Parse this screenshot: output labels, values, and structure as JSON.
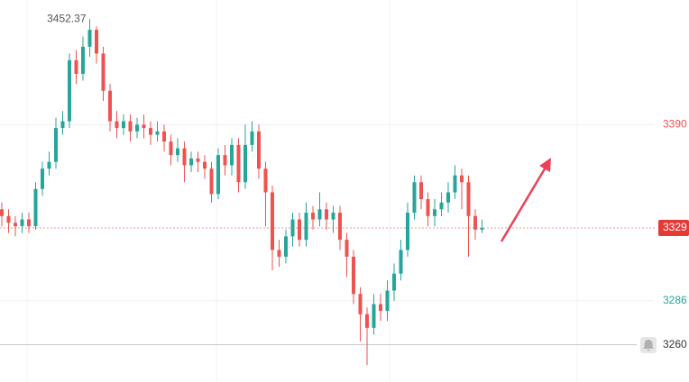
{
  "chart_data": {
    "type": "candlestick",
    "up_color": "#26a69a",
    "down_color": "#ef5350",
    "ylim": [
      3238,
      3463.6
    ],
    "yticks": [
      3286,
      3390
    ],
    "ytick_colors": [
      "#26a69a",
      "#ef5350"
    ],
    "grid": true,
    "high_label": 3452.37,
    "last_price": 3329,
    "alert_level": 3260,
    "open": [
      3340,
      3336,
      3332,
      3330,
      3334,
      3330,
      3352,
      3364,
      3368,
      3388,
      3392,
      3428,
      3420,
      3436,
      3446,
      3432,
      3410,
      3392,
      3388,
      3392,
      3386,
      3390,
      3388,
      3384,
      3386,
      3380,
      3372,
      3376,
      3366,
      3370,
      3368,
      3364,
      3349,
      3372,
      3366,
      3378,
      3356,
      3378,
      3386,
      3364,
      3350,
      3316,
      3312,
      3324,
      3334,
      3322,
      3338,
      3334,
      3340,
      3334,
      3338,
      3322,
      3312,
      3290,
      3278,
      3270,
      3284,
      3280,
      3292,
      3302,
      3316,
      3338,
      3356,
      3346,
      3336,
      3340,
      3344,
      3350,
      3360,
      3356,
      3336,
      3328
    ],
    "high": [
      3344,
      3340,
      3336,
      3338,
      3338,
      3356,
      3368,
      3374,
      3394,
      3398,
      3432,
      3434,
      3442,
      3452.37,
      3448,
      3436,
      3414,
      3398,
      3396,
      3396,
      3394,
      3396,
      3392,
      3392,
      3390,
      3384,
      3382,
      3380,
      3374,
      3374,
      3372,
      3368,
      3376,
      3378,
      3382,
      3382,
      3390,
      3392,
      3390,
      3368,
      3354,
      3322,
      3328,
      3338,
      3338,
      3344,
      3342,
      3350,
      3344,
      3342,
      3342,
      3326,
      3316,
      3294,
      3282,
      3290,
      3290,
      3298,
      3308,
      3322,
      3344,
      3360,
      3360,
      3350,
      3346,
      3350,
      3356,
      3366,
      3364,
      3360,
      3340,
      3334
    ],
    "low": [
      3330,
      3326,
      3324,
      3326,
      3326,
      3328,
      3348,
      3360,
      3364,
      3384,
      3388,
      3414,
      3416,
      3430,
      3426,
      3404,
      3386,
      3382,
      3384,
      3380,
      3382,
      3382,
      3378,
      3380,
      3374,
      3366,
      3368,
      3356,
      3362,
      3362,
      3358,
      3344,
      3346,
      3360,
      3360,
      3350,
      3352,
      3374,
      3358,
      3330,
      3304,
      3306,
      3308,
      3318,
      3318,
      3318,
      3328,
      3330,
      3328,
      3326,
      3316,
      3300,
      3284,
      3262,
      3248,
      3266,
      3274,
      3274,
      3286,
      3298,
      3312,
      3334,
      3340,
      3330,
      3330,
      3336,
      3338,
      3346,
      3340,
      3312,
      3322,
      3326
    ],
    "close": [
      3336,
      3332,
      3330,
      3334,
      3330,
      3352,
      3364,
      3368,
      3388,
      3392,
      3428,
      3420,
      3436,
      3446,
      3432,
      3410,
      3392,
      3388,
      3392,
      3386,
      3390,
      3388,
      3384,
      3386,
      3380,
      3372,
      3376,
      3366,
      3370,
      3368,
      3364,
      3349,
      3372,
      3366,
      3378,
      3356,
      3378,
      3386,
      3364,
      3350,
      3316,
      3312,
      3324,
      3334,
      3322,
      3338,
      3334,
      3340,
      3334,
      3338,
      3322,
      3312,
      3290,
      3278,
      3270,
      3284,
      3280,
      3292,
      3302,
      3316,
      3338,
      3356,
      3346,
      3336,
      3340,
      3344,
      3350,
      3360,
      3356,
      3336,
      3328,
      3329
    ]
  }
}
